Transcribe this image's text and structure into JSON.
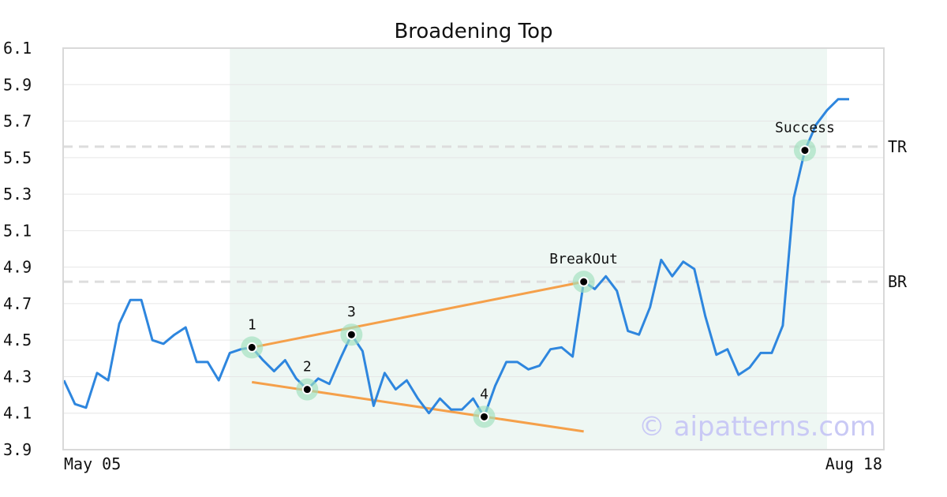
{
  "chart_data": {
    "type": "line",
    "title": "Broadening Top",
    "xlabel": "",
    "ylabel": "",
    "ylim": [
      3.9,
      6.1
    ],
    "y_ticks": [
      "6.1",
      "5.9",
      "5.7",
      "5.5",
      "5.3",
      "5.1",
      "4.9",
      "4.7",
      "4.5",
      "4.3",
      "4.1",
      "3.9"
    ],
    "x_tick_labels": [
      "May 05",
      "Aug 18"
    ],
    "grid": true,
    "series": [
      {
        "values": [
          4.28,
          4.15,
          4.13,
          4.32,
          4.28,
          4.59,
          4.72,
          4.72,
          4.5,
          4.48,
          4.53,
          4.57,
          4.38,
          4.38,
          4.28,
          4.43,
          4.45,
          4.46,
          4.39,
          4.33,
          4.39,
          4.29,
          4.23,
          4.29,
          4.26,
          4.4,
          4.53,
          4.44,
          4.14,
          4.32,
          4.23,
          4.28,
          4.18,
          4.1,
          4.18,
          4.12,
          4.12,
          4.18,
          4.08,
          4.25,
          4.38,
          4.38,
          4.34,
          4.36,
          4.45,
          4.46,
          4.41,
          4.82,
          4.78,
          4.85,
          4.77,
          4.55,
          4.53,
          4.68,
          4.94,
          4.85,
          4.93,
          4.89,
          4.63,
          4.42,
          4.45,
          4.31,
          4.35,
          4.43,
          4.43,
          4.58,
          5.28,
          5.54,
          5.68,
          5.76,
          5.82,
          5.82
        ],
        "color": "#2e86de"
      }
    ],
    "highlight_region": {
      "start_index": 15,
      "end_index": 69,
      "color": "#eef7f3"
    },
    "reference_lines": [
      {
        "label": "TR",
        "y": 5.56
      },
      {
        "label": "BR",
        "y": 4.82
      }
    ],
    "trendlines": [
      {
        "color": "#f5a04a",
        "from": {
          "index": 17,
          "y": 4.46
        },
        "to": {
          "index": 47,
          "y": 4.82
        }
      },
      {
        "color": "#f5a04a",
        "from": {
          "index": 17,
          "y": 4.27
        },
        "to": {
          "index": 47,
          "y": 4.0
        }
      }
    ],
    "annotations": [
      {
        "label": "1",
        "index": 17,
        "y": 4.46
      },
      {
        "label": "2",
        "index": 22,
        "y": 4.23
      },
      {
        "label": "3",
        "index": 26,
        "y": 4.53
      },
      {
        "label": "4",
        "index": 38,
        "y": 4.08
      },
      {
        "label": "BreakOut",
        "index": 47,
        "y": 4.82
      },
      {
        "label": "Success",
        "index": 67,
        "y": 5.54
      }
    ],
    "watermark": "© aipatterns.com"
  }
}
